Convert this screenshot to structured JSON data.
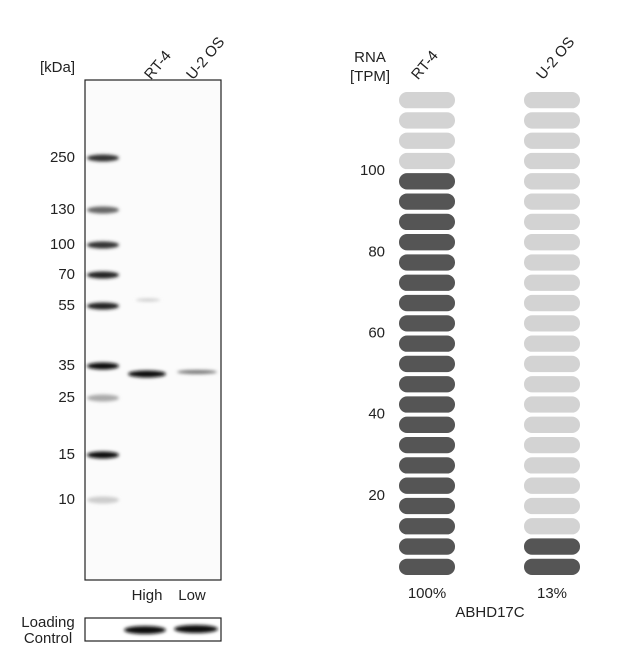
{
  "blot": {
    "kda_label": "[kDa]",
    "lanes": [
      "RT-4",
      "U-2 OS"
    ],
    "markers": [
      250,
      130,
      100,
      70,
      55,
      35,
      25,
      15,
      10
    ],
    "expression": [
      "High",
      "Low"
    ],
    "loading_control": [
      "Loading",
      "Control"
    ]
  },
  "chart_data": {
    "type": "pill",
    "ylabel": [
      "RNA",
      "[TPM]"
    ],
    "categories": [
      "RT-4",
      "U-2 OS"
    ],
    "values": [
      100,
      13
    ],
    "value_labels": [
      "100%",
      "13%"
    ],
    "xlabel": "ABHD17C",
    "ylim": [
      0,
      120
    ],
    "yticks": [
      20,
      40,
      60,
      80,
      100
    ],
    "color_on": "#555555",
    "color_off": "#d3d3d3"
  }
}
